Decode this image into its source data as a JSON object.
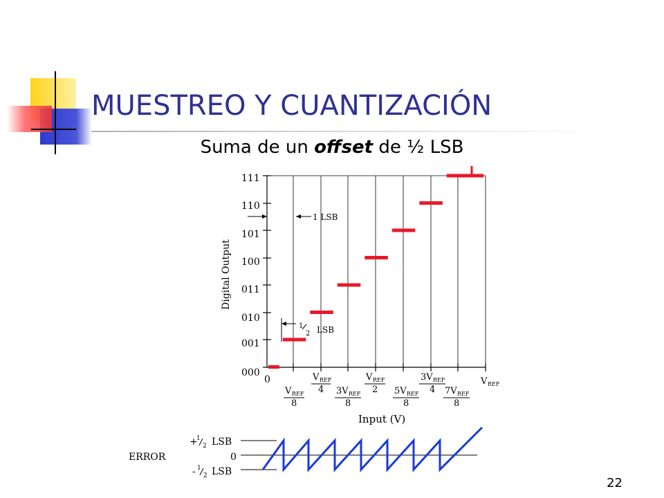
{
  "title": "MUESTREO Y CUANTIZACIÓN",
  "subtitle": {
    "prefix": "Suma de un ",
    "emphasis": "offset",
    "suffix": " de ½ LSB"
  },
  "page_number": "22",
  "colors": {
    "title": "#2e3192",
    "steps": "#e8192c",
    "error": "#1a3bd6",
    "logo_yellow": "#ffd21a",
    "logo_blue": "#2e3bcf",
    "logo_red": "#f04646"
  },
  "chart_data": {
    "type": "line",
    "ylabel": "Digital Output",
    "xlabel": "Input (V)",
    "y_ticks": [
      "000",
      "001",
      "010",
      "011",
      "100",
      "101",
      "110",
      "111"
    ],
    "x_ticks_upper": [
      {
        "num": "0",
        "sub": "",
        "den": ""
      },
      {
        "num": "V",
        "sub": "REF",
        "den": "4"
      },
      {
        "num": "V",
        "sub": "REF",
        "den": "2"
      },
      {
        "num": "3V",
        "sub": "REF",
        "den": "4"
      },
      {
        "num": "V",
        "sub": "REF",
        "den": ""
      }
    ],
    "x_ticks_lower": [
      {
        "num": "V",
        "sub": "REF",
        "den": "8"
      },
      {
        "num": "3V",
        "sub": "REF",
        "den": "8"
      },
      {
        "num": "5V",
        "sub": "REF",
        "den": "8"
      },
      {
        "num": "7V",
        "sub": "REF",
        "den": "8"
      }
    ],
    "annotations": {
      "one_lsb": "1 LSB",
      "half_lsb_num": "1",
      "half_lsb_den": "2",
      "half_lsb_unit": "LSB"
    },
    "steps": [
      {
        "code": 0,
        "x_start": 0.0,
        "x_end": 0.0625
      },
      {
        "code": 1,
        "x_start": 0.0625,
        "x_end": 0.1875
      },
      {
        "code": 2,
        "x_start": 0.1875,
        "x_end": 0.3125
      },
      {
        "code": 3,
        "x_start": 0.3125,
        "x_end": 0.4375
      },
      {
        "code": 4,
        "x_start": 0.4375,
        "x_end": 0.5625
      },
      {
        "code": 5,
        "x_start": 0.5625,
        "x_end": 0.6875
      },
      {
        "code": 6,
        "x_start": 0.6875,
        "x_end": 0.8125
      },
      {
        "code": 7,
        "x_start": 0.8125,
        "x_end": 1.0
      }
    ],
    "error_plot": {
      "label": "ERROR",
      "top_sign": "+",
      "bottom_sign": "-",
      "half_num": "1",
      "half_den": "2",
      "unit": "LSB",
      "zero_label": "0",
      "range_lsb": [
        -0.5,
        0.5
      ]
    }
  }
}
